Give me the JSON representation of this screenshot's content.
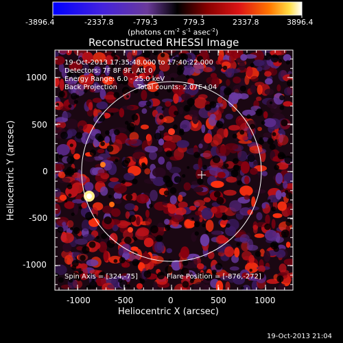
{
  "colorbar": {
    "ticks": [
      "-3896.4",
      "-2337.8",
      "-779.3",
      "779.3",
      "2337.8",
      "3896.4"
    ],
    "units_main": "(photons cm",
    "units_exp1": "-2",
    "units_mid": " s",
    "units_exp2": "-1",
    "units_tail": " asec",
    "units_exp3": "-2",
    "units_close": ")"
  },
  "title": "Reconstructed RHESSI Image",
  "annotations": {
    "time_range": "19-Oct-2013 17:35:48.000 to 17:40:22.000",
    "detectors": "Detectors: 7F 8F 9F, Att 0",
    "energy": "Energy Range: 6.0 - 25.0 keV",
    "method": "Back Projection",
    "counts": "Total counts: 2.07E+04",
    "spin_axis": "Spin Axis = [324,-75]",
    "flare_position": "Flare Position = [-876,-272]"
  },
  "axes": {
    "xlabel": "Heliocentric X (arcsec)",
    "ylabel": "Heliocentric Y (arcsec)",
    "xticks": [
      "-1000",
      "-500",
      "0",
      "500",
      "1000"
    ],
    "yticks": [
      "1000",
      "500",
      "0",
      "-500",
      "-1000"
    ]
  },
  "footer_date": "19-Oct-2013 21:04",
  "colors": {
    "background": "#000000",
    "text": "#ffffff",
    "colormap": [
      "#0000ff",
      "#5533cc",
      "#6a3a9a",
      "#1a0a2a",
      "#000000",
      "#660000",
      "#cc1010",
      "#ff5500",
      "#ffcc33",
      "#ffffee"
    ]
  }
}
